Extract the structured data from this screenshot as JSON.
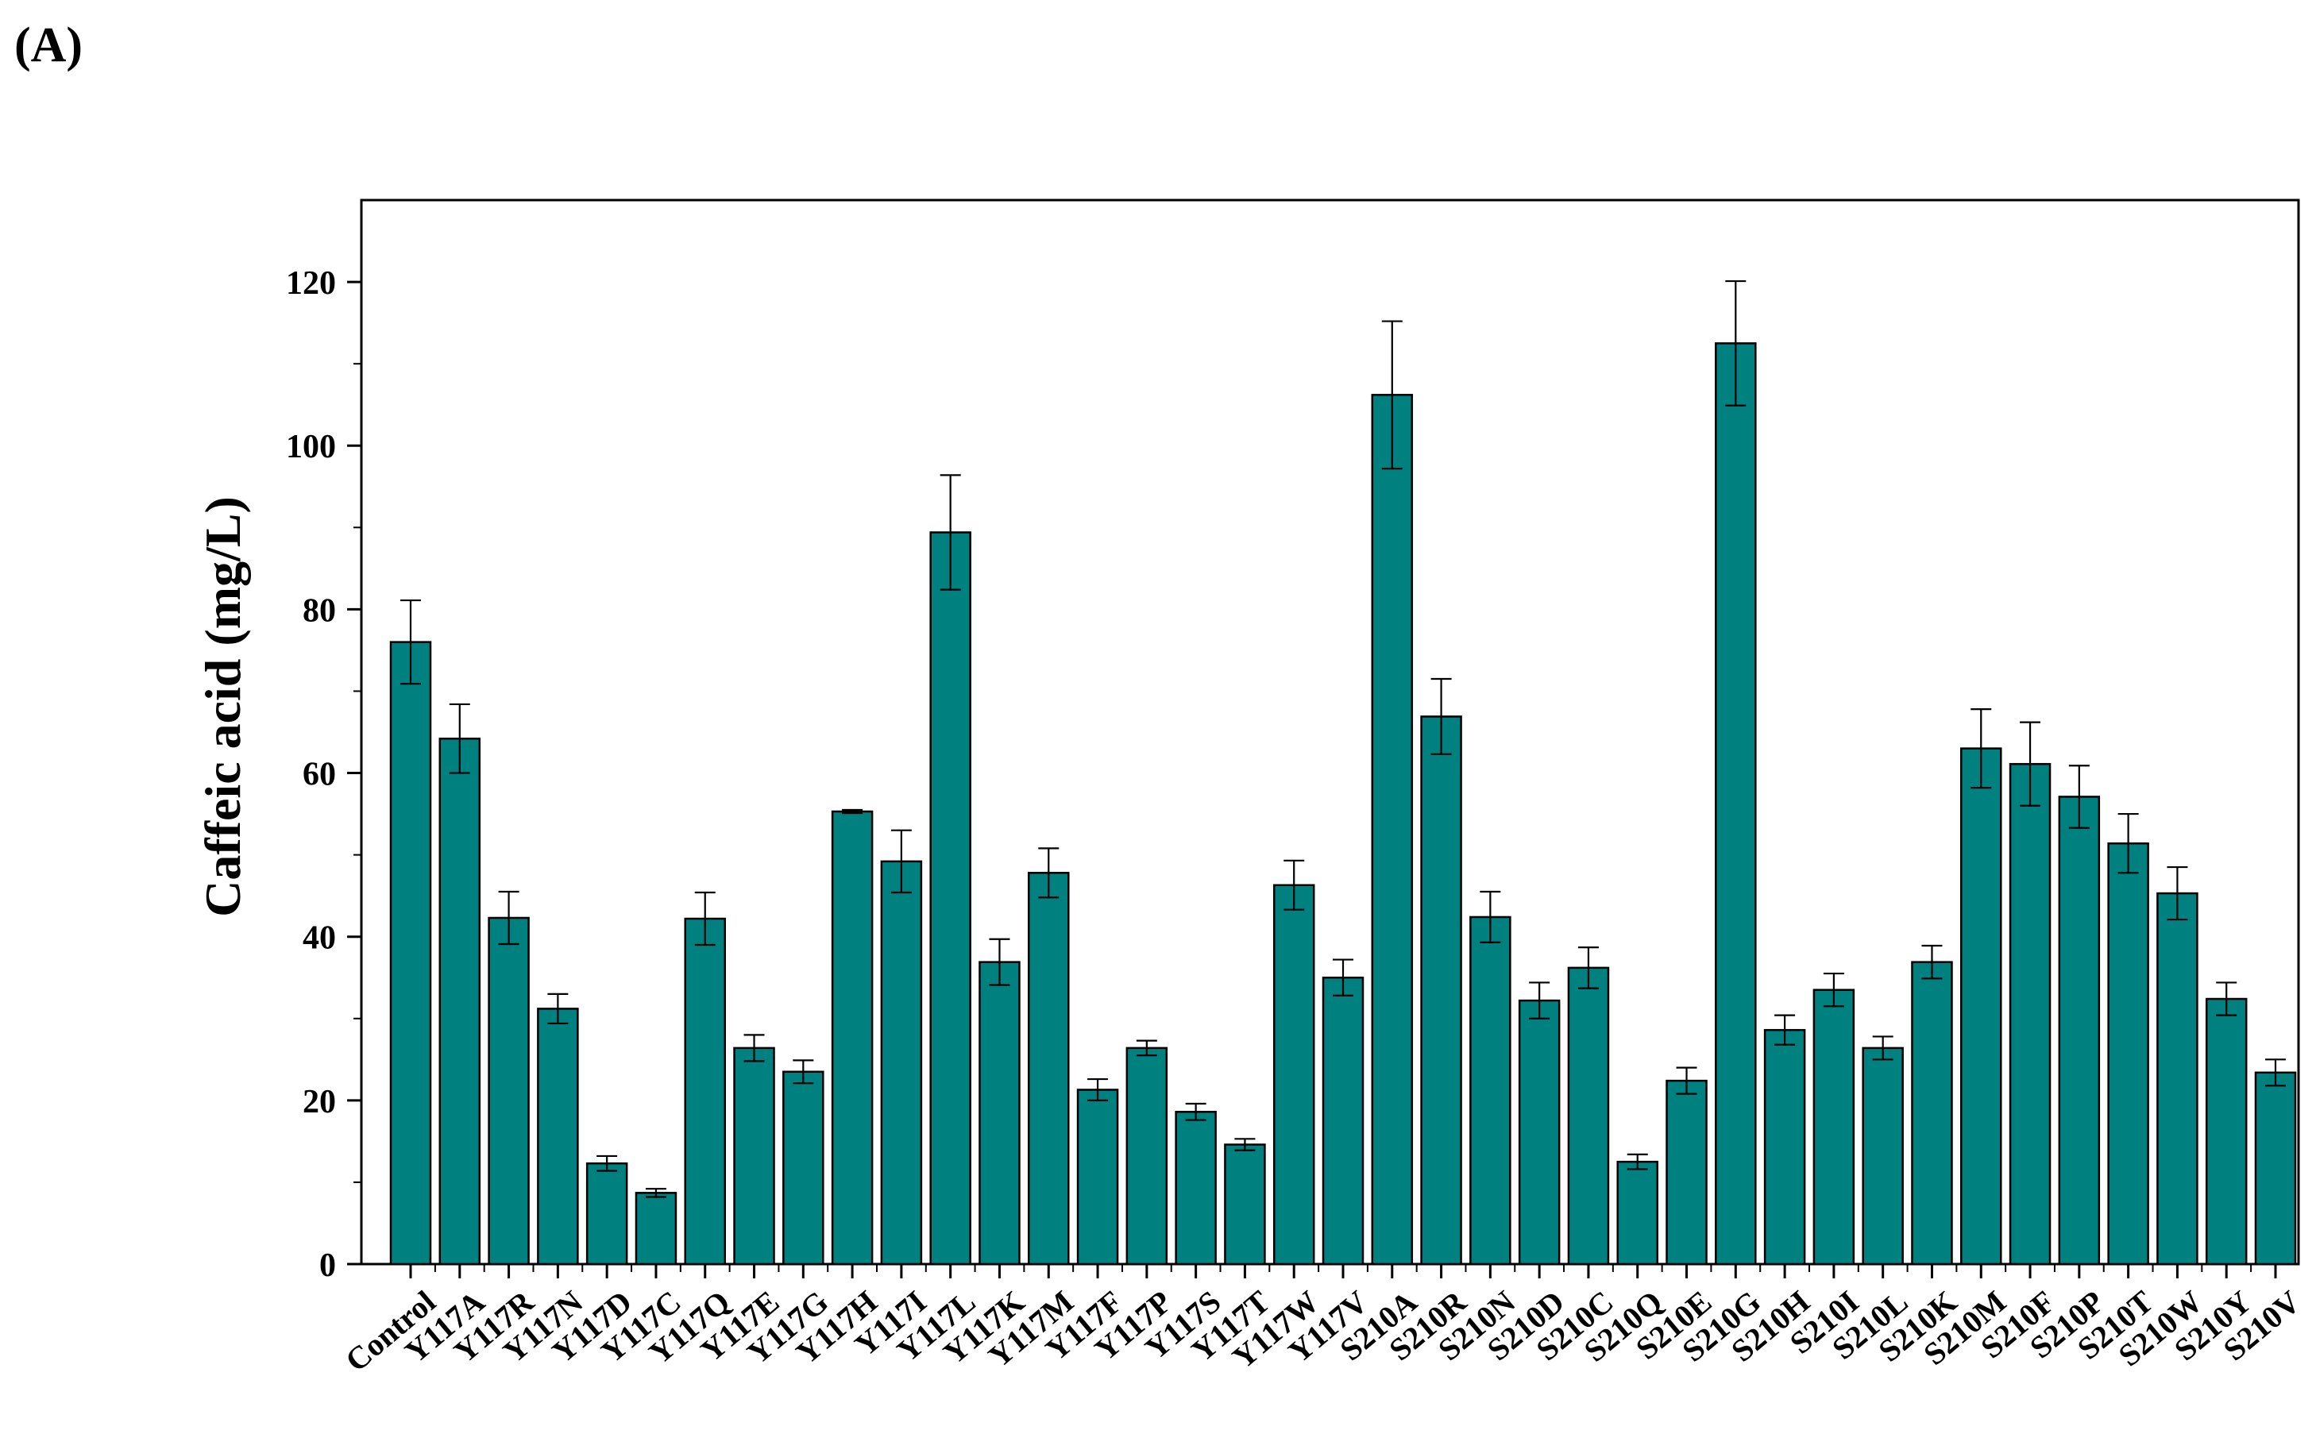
{
  "panel_label": "(A)",
  "colors": {
    "bar_fill": "#00807f",
    "bar_edge": "#000000",
    "axis": "#000000"
  },
  "chart_data": {
    "type": "bar",
    "title": "",
    "xlabel": "",
    "ylabel": "Caffeic acid (mg/L)",
    "ylim": [
      0,
      130
    ],
    "yticks": [
      0,
      20,
      40,
      60,
      80,
      100,
      120
    ],
    "grid": false,
    "legend": "none",
    "error_bars": true,
    "categories": [
      "Control",
      "Y117A",
      "Y117R",
      "Y117N",
      "Y117D",
      "Y117C",
      "Y117Q",
      "Y117E",
      "Y117G",
      "Y117H",
      "Y117I",
      "Y117L",
      "Y117K",
      "Y117M",
      "Y117F",
      "Y117P",
      "Y117S",
      "Y117T",
      "Y117W",
      "Y117V",
      "S210A",
      "S210R",
      "S210N",
      "S210D",
      "S210C",
      "S210Q",
      "S210E",
      "S210G",
      "S210H",
      "S210I",
      "S210L",
      "S210K",
      "S210M",
      "S210F",
      "S210P",
      "S210T",
      "S210W",
      "S210Y",
      "S210V"
    ],
    "values": [
      76,
      64.2,
      42.3,
      31.2,
      12.3,
      8.7,
      42.2,
      26.4,
      23.5,
      55.3,
      49.2,
      89.4,
      36.9,
      47.8,
      21.3,
      26.4,
      18.6,
      14.6,
      46.3,
      35.0,
      106.2,
      66.9,
      42.4,
      32.2,
      36.2,
      12.5,
      22.4,
      112.5,
      28.6,
      33.5,
      26.4,
      36.9,
      63.0,
      61.1,
      57.1,
      51.4,
      45.3,
      32.4,
      23.4
    ],
    "errors": [
      5.1,
      4.2,
      3.2,
      1.8,
      0.9,
      0.5,
      3.2,
      1.6,
      1.4,
      0.2,
      3.8,
      7.0,
      2.8,
      3.0,
      1.3,
      0.9,
      1.0,
      0.7,
      3.0,
      2.2,
      9.0,
      4.6,
      3.1,
      2.2,
      2.5,
      0.9,
      1.6,
      7.6,
      1.8,
      2.0,
      1.4,
      2.0,
      4.8,
      5.1,
      3.8,
      3.6,
      3.2,
      2.0,
      1.6
    ]
  }
}
